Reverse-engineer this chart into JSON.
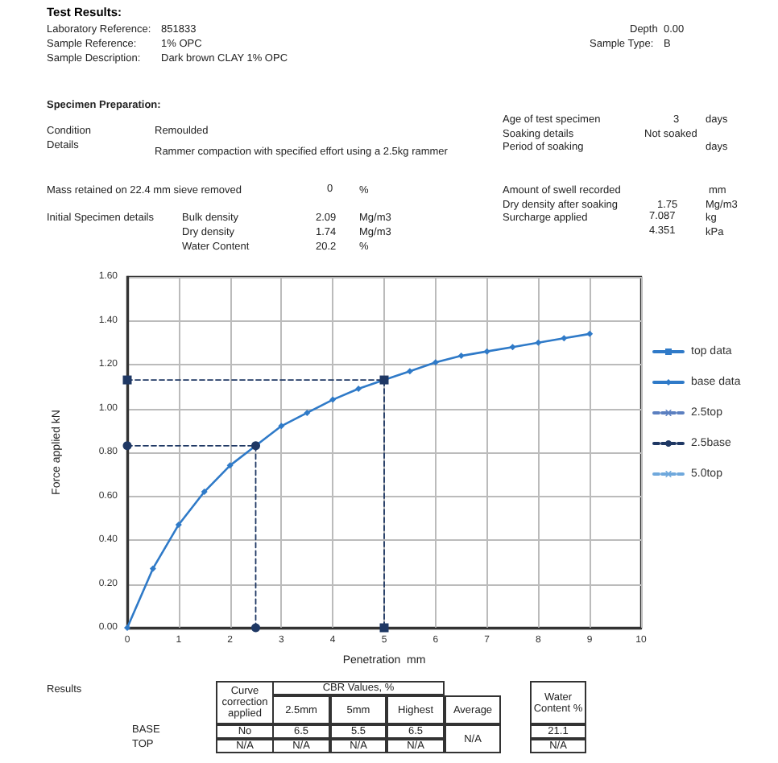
{
  "chart_data": {
    "type": "line",
    "title": "Test Results:",
    "xlabel": "Penetration  mm",
    "ylabel": "Force applied kN",
    "xlim": [
      0,
      10
    ],
    "xticks": [
      0,
      1,
      2,
      3,
      4,
      5,
      6,
      7,
      8,
      9,
      10
    ],
    "ylim": [
      0,
      1.6
    ],
    "yticks": [
      {
        "value": 0,
        "label": "0.00"
      },
      {
        "value": 0.2,
        "label": "0.20"
      },
      {
        "value": 0.4,
        "label": "0.40"
      },
      {
        "value": 0.6,
        "label": "0.60"
      },
      {
        "value": 0.8,
        "label": "0.80"
      },
      {
        "value": 1,
        "label": "1.00"
      },
      {
        "value": 1.2,
        "label": "1.20"
      },
      {
        "value": 1.4,
        "label": "1.40"
      },
      {
        "value": 1.6,
        "label": "1.60"
      }
    ],
    "grid": true,
    "legend": "right",
    "series": [
      {
        "name": "top data",
        "color": "#2f7ac8",
        "marker": "square",
        "line_style": "solid"
      },
      {
        "name": "base data",
        "color": "#2f7ac8",
        "marker": "diamond",
        "line_style": "solid",
        "x": [
          0,
          0.5,
          1,
          1.5,
          2,
          2.5,
          3,
          3.5,
          4,
          4.5,
          5,
          5.5,
          6,
          6.5,
          7,
          7.5,
          8,
          8.5,
          9
        ],
        "values": [
          0,
          0.27,
          0.47,
          0.62,
          0.74,
          0.83,
          0.92,
          0.98,
          1.04,
          1.09,
          1.13,
          1.17,
          1.21,
          1.24,
          1.26,
          1.28,
          1.3,
          1.32,
          1.34
        ]
      },
      {
        "name": "2.5top",
        "color": "#5b7fc0",
        "marker": "cross",
        "line_style": "dashed"
      },
      {
        "name": "2.5base",
        "color": "#1f3864",
        "marker": "circle",
        "line_style": "dashed",
        "x": [
          0,
          2.5,
          2.5
        ],
        "values": [
          0.83,
          0.83,
          0
        ]
      },
      {
        "name": "5.0top",
        "color": "#6fa8dc",
        "marker": "cross",
        "line_style": "dashed"
      },
      {
        "color": "#1f3864",
        "marker": "square",
        "line_style": "dashed",
        "x": [
          0,
          5,
          5
        ],
        "values": [
          1.13,
          1.13,
          0
        ]
      }
    ],
    "annotations": [
      "Laboratory Reference:",
      "851833",
      "Sample Reference:",
      "1% OPC",
      "Sample Description:",
      "Dark brown CLAY 1% OPC",
      "Depth",
      "0.00",
      "Sample Type:",
      "B",
      "Specimen Preparation:",
      "Age of test specimen",
      "3",
      "days",
      "Condition",
      "Remoulded",
      "Soaking details",
      "Not soaked",
      "Details",
      "Rammer compaction with specified effort using a 2.5kg rammer",
      "Period of soaking",
      "days",
      "Amount of swell recorded",
      "mm",
      "Mass retained on 22.4 mm sieve removed",
      "0",
      "%",
      "Dry density after soaking",
      "1.75",
      "Mg/m3",
      "Initial Specimen details",
      "Bulk density",
      "2.09",
      "Mg/m3",
      "Surcharge applied",
      "7.087",
      "kg",
      "Dry density",
      "1.74",
      "Mg/m3",
      "4.351",
      "kPa",
      "Water Content",
      "20.2",
      "%",
      "Results",
      "BASE",
      "TOP",
      "Curve correction applied",
      "CBR Values,  %",
      "2.5mm",
      "5mm",
      "Highest",
      "Average",
      "No",
      "6.5",
      "5.5",
      "6.5",
      "N/A",
      "N/A",
      "N/A",
      "N/A",
      "N/A",
      "Water Content %",
      "21.1",
      "N/A"
    ]
  }
}
